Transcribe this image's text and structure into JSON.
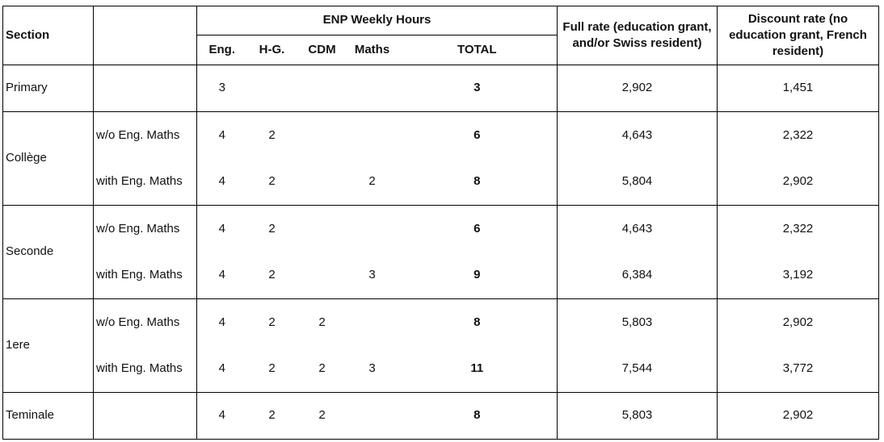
{
  "table": {
    "headers": {
      "section": "Section",
      "enp_weekly_hours": "ENP Weekly Hours",
      "sub": [
        "Eng.",
        "H-G.",
        "CDM",
        "Maths",
        "TOTAL"
      ],
      "full_rate": "Full rate (education grant, and/or Swiss resident)",
      "discount_rate": "Discount rate (no education grant, French resident)"
    },
    "rows": [
      {
        "section": "Primary",
        "variant": "",
        "eng": "3",
        "hg": "",
        "cdm": "",
        "maths": "",
        "total": "3",
        "full": "2,902",
        "discount": "1,451"
      },
      {
        "section": "Collège",
        "variant": "w/o Eng. Maths",
        "eng": "4",
        "hg": "2",
        "cdm": "",
        "maths": "",
        "total": "6",
        "full": "4,643",
        "discount": "2,322"
      },
      {
        "section": "",
        "variant": "with Eng. Maths",
        "eng": "4",
        "hg": "2",
        "cdm": "",
        "maths": "2",
        "total": "8",
        "full": "5,804",
        "discount": "2,902"
      },
      {
        "section": "Seconde",
        "variant": "w/o Eng. Maths",
        "eng": "4",
        "hg": "2",
        "cdm": "",
        "maths": "",
        "total": "6",
        "full": "4,643",
        "discount": "2,322"
      },
      {
        "section": "",
        "variant": "with Eng. Maths",
        "eng": "4",
        "hg": "2",
        "cdm": "",
        "maths": "3",
        "total": "9",
        "full": "6,384",
        "discount": "3,192"
      },
      {
        "section": "1ere",
        "variant": "w/o Eng. Maths",
        "eng": "4",
        "hg": "2",
        "cdm": "2",
        "maths": "",
        "total": "8",
        "full": "5,803",
        "discount": "2,902"
      },
      {
        "section": "",
        "variant": "with Eng. Maths",
        "eng": "4",
        "hg": "2",
        "cdm": "2",
        "maths": "3",
        "total": "11",
        "full": "7,544",
        "discount": "3,772"
      },
      {
        "section": "Teminale",
        "variant": "",
        "eng": "4",
        "hg": "2",
        "cdm": "2",
        "maths": "",
        "total": "8",
        "full": "5,803",
        "discount": "2,902"
      }
    ]
  }
}
